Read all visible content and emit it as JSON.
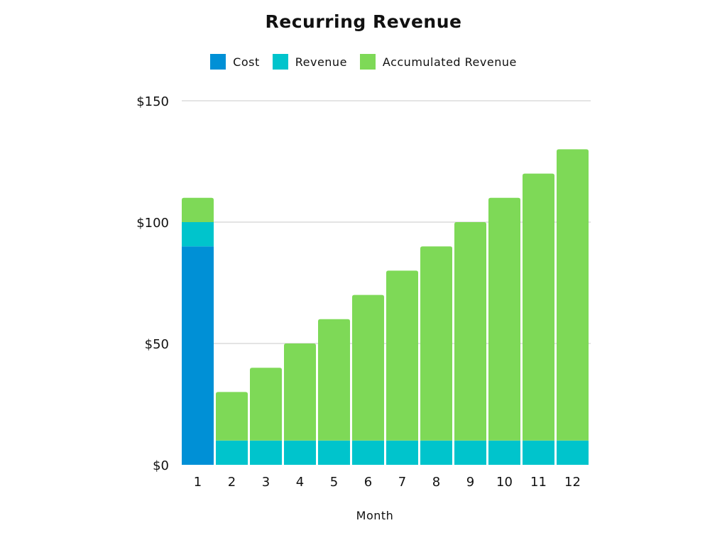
{
  "chart_data": {
    "type": "bar",
    "stacked": true,
    "title": "Recurring Revenue",
    "xlabel": "Month",
    "ylabel": "",
    "categories": [
      "1",
      "2",
      "3",
      "4",
      "5",
      "6",
      "7",
      "8",
      "9",
      "10",
      "11",
      "12"
    ],
    "series": [
      {
        "name": "Cost",
        "color": "#0090D6",
        "values": [
          90,
          0,
          0,
          0,
          0,
          0,
          0,
          0,
          0,
          0,
          0,
          0
        ]
      },
      {
        "name": "Revenue",
        "color": "#00C4CC",
        "values": [
          10,
          10,
          10,
          10,
          10,
          10,
          10,
          10,
          10,
          10,
          10,
          10
        ]
      },
      {
        "name": "Accumulated Revenue",
        "color": "#7ED957",
        "values": [
          10,
          20,
          30,
          40,
          50,
          60,
          70,
          80,
          90,
          100,
          110,
          120
        ]
      }
    ],
    "ylim": [
      0,
      150
    ],
    "yticks": [
      0,
      50,
      100,
      150
    ],
    "ytick_labels": [
      "$0",
      "$50",
      "$100",
      "$150"
    ],
    "grid": true,
    "legend_position": "top"
  }
}
